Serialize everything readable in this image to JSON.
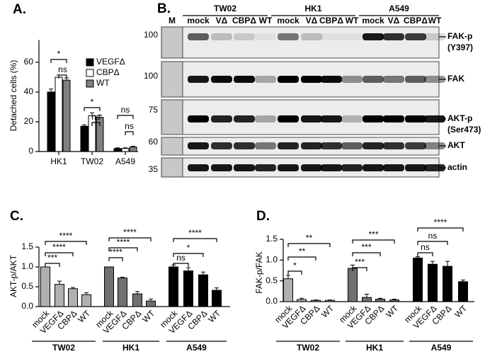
{
  "chart_data": [
    {
      "type": "bar",
      "title": "A.",
      "ylabel": "Detached cells (%)",
      "categories": [
        "HK1",
        "TW02",
        "A549"
      ],
      "series": [
        {
          "name": "VEGFΔ",
          "color": "#000000",
          "values": [
            40,
            17,
            2
          ],
          "errors": [
            2,
            1,
            0.5
          ]
        },
        {
          "name": "CBPΔ",
          "color": "#ffffff",
          "values": [
            50,
            24,
            2
          ],
          "errors": [
            1.5,
            2,
            0.5
          ]
        },
        {
          "name": "WT",
          "color": "#808080",
          "values": [
            48,
            23,
            3
          ],
          "errors": [
            1.5,
            1.5,
            0.5
          ]
        }
      ],
      "ylim": [
        0,
        75
      ],
      "yticks": [
        0,
        20,
        40,
        60
      ],
      "annotations": [
        "*",
        "ns",
        "*",
        "ns",
        "ns",
        "ns"
      ]
    },
    {
      "type": "bar",
      "group_by": "series",
      "title": "C.",
      "ylabel": "AKT-p/AKT",
      "categories": [
        "mock",
        "VEGFΔ",
        "CBPΔ",
        "WT"
      ],
      "series": [
        {
          "name": "TW02",
          "color": "#b0b0b0",
          "values": [
            1.0,
            0.56,
            0.45,
            0.3
          ],
          "errors": [
            0,
            0.08,
            0.03,
            0.05
          ]
        },
        {
          "name": "HK1",
          "color": "#707070",
          "values": [
            1.0,
            0.72,
            0.32,
            0.14
          ],
          "errors": [
            0,
            0.02,
            0.06,
            0.05
          ]
        },
        {
          "name": "A549",
          "color": "#000000",
          "values": [
            1.0,
            0.9,
            0.8,
            0.41
          ],
          "errors": [
            0.05,
            0.08,
            0.07,
            0.06
          ]
        }
      ],
      "ylim": [
        0,
        1.5
      ],
      "yticks": [
        {
          "value": 0,
          "label": "0.0"
        },
        0.5,
        {
          "value": 1,
          "label": "1.0"
        },
        1.5
      ],
      "annotations": [
        "***",
        "****",
        "****",
        "****",
        "****",
        "****",
        "ns",
        "*",
        "****"
      ]
    },
    {
      "type": "bar",
      "group_by": "series",
      "title": "D.",
      "ylabel": "FAK-p/FAK",
      "categories": [
        "mock",
        "VEGFΔ",
        "CBPΔ",
        "WT"
      ],
      "series": [
        {
          "name": "TW02",
          "color": "#b0b0b0",
          "values": [
            0.55,
            0.05,
            0.03,
            0.03
          ],
          "errors": [
            0.08,
            0.03,
            0.01,
            0.01
          ]
        },
        {
          "name": "HK1",
          "color": "#707070",
          "values": [
            0.8,
            0.1,
            0.06,
            0.04
          ],
          "errors": [
            0.08,
            0.08,
            0.02,
            0.02
          ]
        },
        {
          "name": "A549",
          "color": "#000000",
          "values": [
            1.05,
            0.9,
            0.85,
            0.48
          ],
          "errors": [
            0.03,
            0.07,
            0.12,
            0.04
          ]
        }
      ],
      "ylim": [
        0,
        1.5
      ],
      "yticks": [
        {
          "value": 0,
          "label": "0.0"
        },
        0.5,
        {
          "value": 1,
          "label": "1.0"
        },
        1.5
      ],
      "annotations": [
        "*",
        "**",
        "**",
        "***",
        "***",
        "***",
        "ns",
        "ns",
        "****"
      ]
    }
  ],
  "blot": {
    "title": "B.",
    "groups": [
      "TW02",
      "HK1",
      "A549"
    ],
    "marker_lane": "M",
    "lanes": [
      "mock",
      "VΔ",
      "CBPΔ",
      "WT",
      "mock",
      "VΔ",
      "CBPΔ",
      "WT",
      "mock",
      "VΔ",
      "CBPΔ",
      "WT"
    ],
    "markers": [
      100,
      100,
      75,
      60,
      35
    ],
    "rows": [
      [
        "FAK-p",
        "(Y397)"
      ],
      [
        "FAK"
      ],
      [
        "AKT-p",
        "(Ser473)"
      ],
      [
        "AKT"
      ],
      [
        "actin"
      ]
    ]
  }
}
